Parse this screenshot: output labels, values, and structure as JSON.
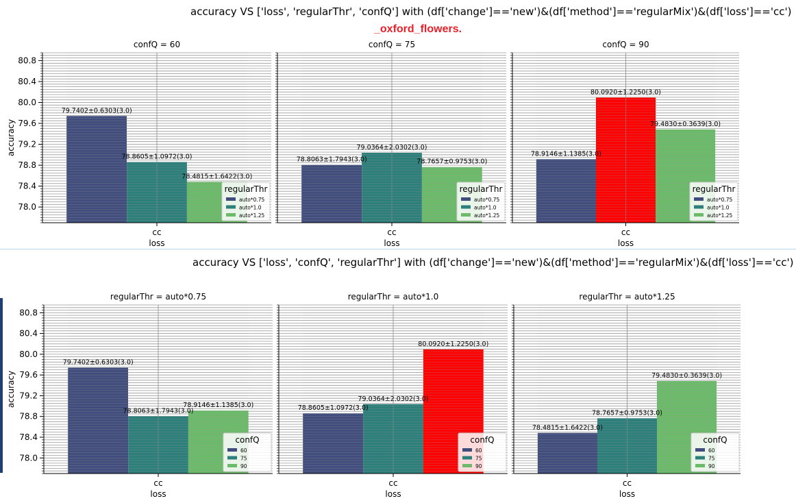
{
  "figures": [
    {
      "title": "accuracy VS ['loss', 'regularThr', 'confQ'] with (df['change']=='new')&(df['method']=='regularMix')&(df['loss']=='cc')",
      "subtitle": "_oxford_flowers."
    },
    {
      "title": "accuracy VS ['loss', 'confQ', 'regularThr'] with (df['change']=='new')&(df['method']=='regularMix')&(df['loss']=='cc')"
    }
  ],
  "colors": {
    "dark": "#414d7c",
    "mid": "#2d7f7b",
    "light": "#6cbb6a",
    "best": "#ff0000"
  },
  "chart_data": [
    {
      "type": "bar",
      "title": "confQ = 60",
      "xlabel": "loss",
      "ylabel": "accuracy",
      "categories": [
        "cc"
      ],
      "ylim": [
        77.7,
        80.95
      ],
      "yticks": [
        "78.0",
        "78.4",
        "78.8",
        "79.2",
        "79.6",
        "80.0",
        "80.4",
        "80.8"
      ],
      "legend_title": "regularThr",
      "legend": [
        "auto*0.75",
        "auto*1.0",
        "auto*1.25"
      ],
      "legend_placement": "lower right",
      "bars": [
        {
          "value": 79.7402,
          "label": "79.7402±0.6303(3.0)",
          "color": "#414d7c"
        },
        {
          "value": 78.8605,
          "label": "78.8605±1.0972(3.0)",
          "color": "#2d7f7b"
        },
        {
          "value": 78.4815,
          "label": "78.4815±1.6422(3.0)",
          "color": "#6cbb6a"
        }
      ]
    },
    {
      "type": "bar",
      "title": "confQ = 75",
      "xlabel": "loss",
      "ylabel": "",
      "categories": [
        "cc"
      ],
      "ylim": [
        77.7,
        80.95
      ],
      "legend_title": "regularThr",
      "legend": [
        "auto*0.75",
        "auto*1.0",
        "auto*1.25"
      ],
      "legend_placement": "lower right",
      "bars": [
        {
          "value": 78.8063,
          "label": "78.8063±1.7943(3.0)",
          "color": "#414d7c"
        },
        {
          "value": 79.0364,
          "label": "79.0364±2.0302(3.0)",
          "color": "#2d7f7b"
        },
        {
          "value": 78.7657,
          "label": "78.7657±0.9753(3.0)",
          "color": "#6cbb6a"
        }
      ]
    },
    {
      "type": "bar",
      "title": "confQ = 90",
      "xlabel": "loss",
      "ylabel": "",
      "categories": [
        "cc"
      ],
      "ylim": [
        77.7,
        80.95
      ],
      "legend_title": "regularThr",
      "legend": [
        "auto*0.75",
        "auto*1.0",
        "auto*1.25"
      ],
      "legend_placement": "lower right",
      "bars": [
        {
          "value": 78.9146,
          "label": "78.9146±1.1385(3.0)",
          "color": "#414d7c"
        },
        {
          "value": 80.092,
          "label": "80.0920±1.2250(3.0)",
          "color": "#ff0000"
        },
        {
          "value": 79.483,
          "label": "79.4830±0.3639(3.0)",
          "color": "#6cbb6a"
        }
      ]
    },
    {
      "type": "bar",
      "title": "regularThr = auto*0.75",
      "xlabel": "loss",
      "ylabel": "accuracy",
      "categories": [
        "cc"
      ],
      "ylim": [
        77.7,
        80.95
      ],
      "yticks": [
        "78.0",
        "78.4",
        "78.8",
        "79.2",
        "79.6",
        "80.0",
        "80.4",
        "80.8"
      ],
      "legend_title": "confQ",
      "legend": [
        "60",
        "75",
        "90"
      ],
      "legend_placement": "lower right",
      "bars": [
        {
          "value": 79.7402,
          "label": "79.7402±0.6303(3.0)",
          "color": "#414d7c"
        },
        {
          "value": 78.8063,
          "label": "78.8063±1.7943(3.0)",
          "color": "#2d7f7b"
        },
        {
          "value": 78.9146,
          "label": "78.9146±1.1385(3.0)",
          "color": "#6cbb6a"
        }
      ]
    },
    {
      "type": "bar",
      "title": "regularThr = auto*1.0",
      "xlabel": "loss",
      "ylabel": "",
      "categories": [
        "cc"
      ],
      "ylim": [
        77.7,
        80.95
      ],
      "legend_title": "confQ",
      "legend": [
        "60",
        "75",
        "90"
      ],
      "legend_placement": "lower right",
      "bars": [
        {
          "value": 78.8605,
          "label": "78.8605±1.0972(3.0)",
          "color": "#414d7c"
        },
        {
          "value": 79.0364,
          "label": "79.0364±2.0302(3.0)",
          "color": "#2d7f7b"
        },
        {
          "value": 80.092,
          "label": "80.0920±1.2250(3.0)",
          "color": "#ff0000"
        }
      ]
    },
    {
      "type": "bar",
      "title": "regularThr = auto*1.25",
      "xlabel": "loss",
      "ylabel": "",
      "categories": [
        "cc"
      ],
      "ylim": [
        77.7,
        80.95
      ],
      "legend_title": "confQ",
      "legend": [
        "60",
        "75",
        "90"
      ],
      "legend_placement": "lower right",
      "bars": [
        {
          "value": 78.4815,
          "label": "78.4815±1.6422(3.0)",
          "color": "#414d7c"
        },
        {
          "value": 78.7657,
          "label": "78.7657±0.9753(3.0)",
          "color": "#2d7f7b"
        },
        {
          "value": 79.483,
          "label": "79.4830±0.3639(3.0)",
          "color": "#6cbb6a"
        }
      ]
    }
  ]
}
